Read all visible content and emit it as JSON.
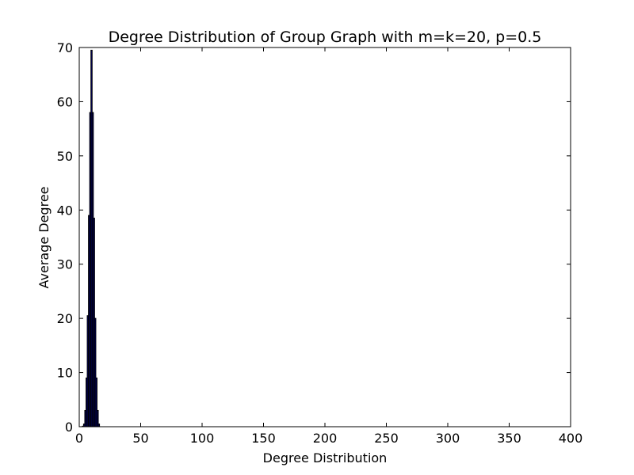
{
  "chart_data": {
    "type": "bar",
    "title": "Degree Distribution of Group Graph with m=k=20, p=0.5",
    "xlabel": "Degree Distribution",
    "ylabel": "Average Degree",
    "xlim": [
      0,
      400
    ],
    "ylim": [
      0,
      70
    ],
    "x_ticks": [
      0,
      50,
      100,
      150,
      200,
      250,
      300,
      350,
      400
    ],
    "y_ticks": [
      0,
      10,
      20,
      30,
      40,
      50,
      60,
      70
    ],
    "grid": false,
    "bar_width": 1,
    "bar_color": "#000080",
    "bar_edge_color": "#000000",
    "x": [
      3,
      4,
      5,
      6,
      7,
      8,
      9,
      10,
      11,
      12,
      13,
      14,
      15,
      16
    ],
    "values": [
      0.1,
      0.5,
      3,
      9,
      20.5,
      39,
      58,
      69.5,
      58,
      38.5,
      20,
      9,
      3,
      0.5
    ]
  }
}
